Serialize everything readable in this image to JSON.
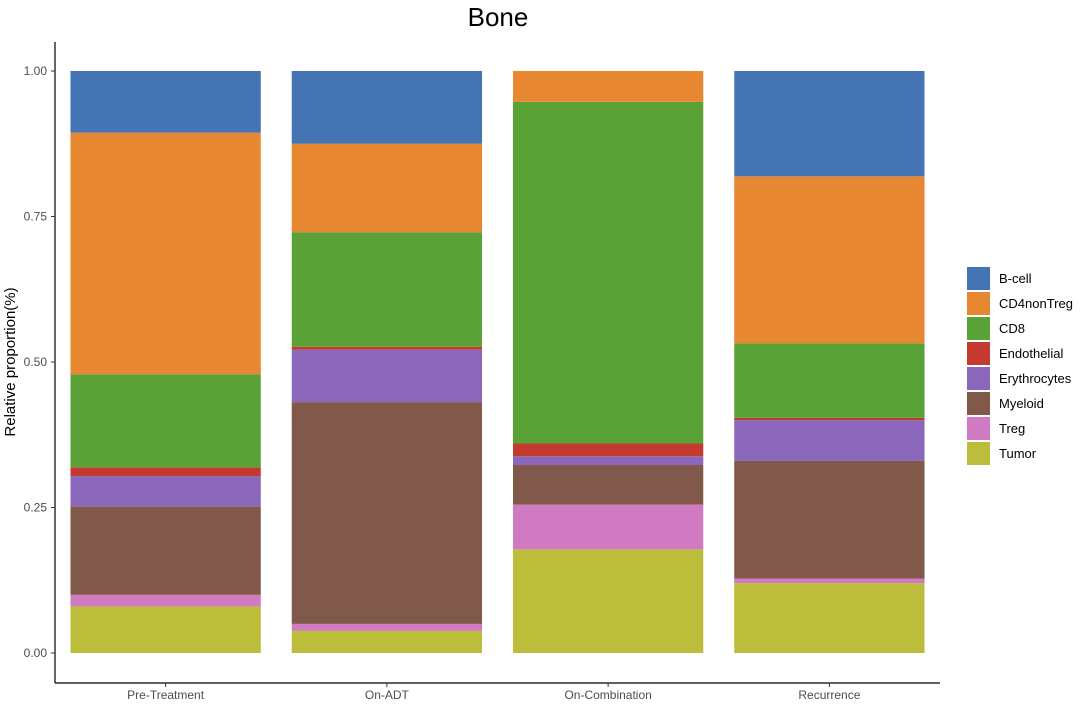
{
  "chart_data": {
    "type": "bar",
    "stacked": true,
    "title": "Bone",
    "xlabel": "",
    "ylabel": "Relative proportion(%)",
    "ylim": [
      0,
      1
    ],
    "yticks": [
      "0.00",
      "0.25",
      "0.50",
      "0.75",
      "1.00"
    ],
    "categories": [
      "Pre-Treatment",
      "On-ADT",
      "On-Combination",
      "Recurrence"
    ],
    "legend_position": "right",
    "series": [
      {
        "name": "Tumor",
        "color": "#bcbd3b",
        "values": [
          0.08,
          0.038,
          0.178,
          0.12
        ]
      },
      {
        "name": "Treg",
        "color": "#d07bc1",
        "values": [
          0.02,
          0.012,
          0.077,
          0.008
        ]
      },
      {
        "name": "Myeloid",
        "color": "#81594b",
        "values": [
          0.152,
          0.381,
          0.068,
          0.202
        ]
      },
      {
        "name": "Erythrocytes",
        "color": "#8c68bc",
        "values": [
          0.052,
          0.09,
          0.015,
          0.07
        ]
      },
      {
        "name": "Endothelial",
        "color": "#c43a30",
        "values": [
          0.015,
          0.005,
          0.022,
          0.004
        ]
      },
      {
        "name": "CD8",
        "color": "#5aa136",
        "values": [
          0.16,
          0.197,
          0.587,
          0.128
        ]
      },
      {
        "name": "CD4nonTreg",
        "color": "#e78731",
        "values": [
          0.415,
          0.152,
          0.053,
          0.287
        ]
      },
      {
        "name": "B-cell",
        "color": "#4474b3",
        "values": [
          0.106,
          0.125,
          0.0,
          0.181
        ]
      }
    ],
    "legend_order": [
      "B-cell",
      "CD4nonTreg",
      "CD8",
      "Endothelial",
      "Erythrocytes",
      "Myeloid",
      "Treg",
      "Tumor"
    ]
  }
}
